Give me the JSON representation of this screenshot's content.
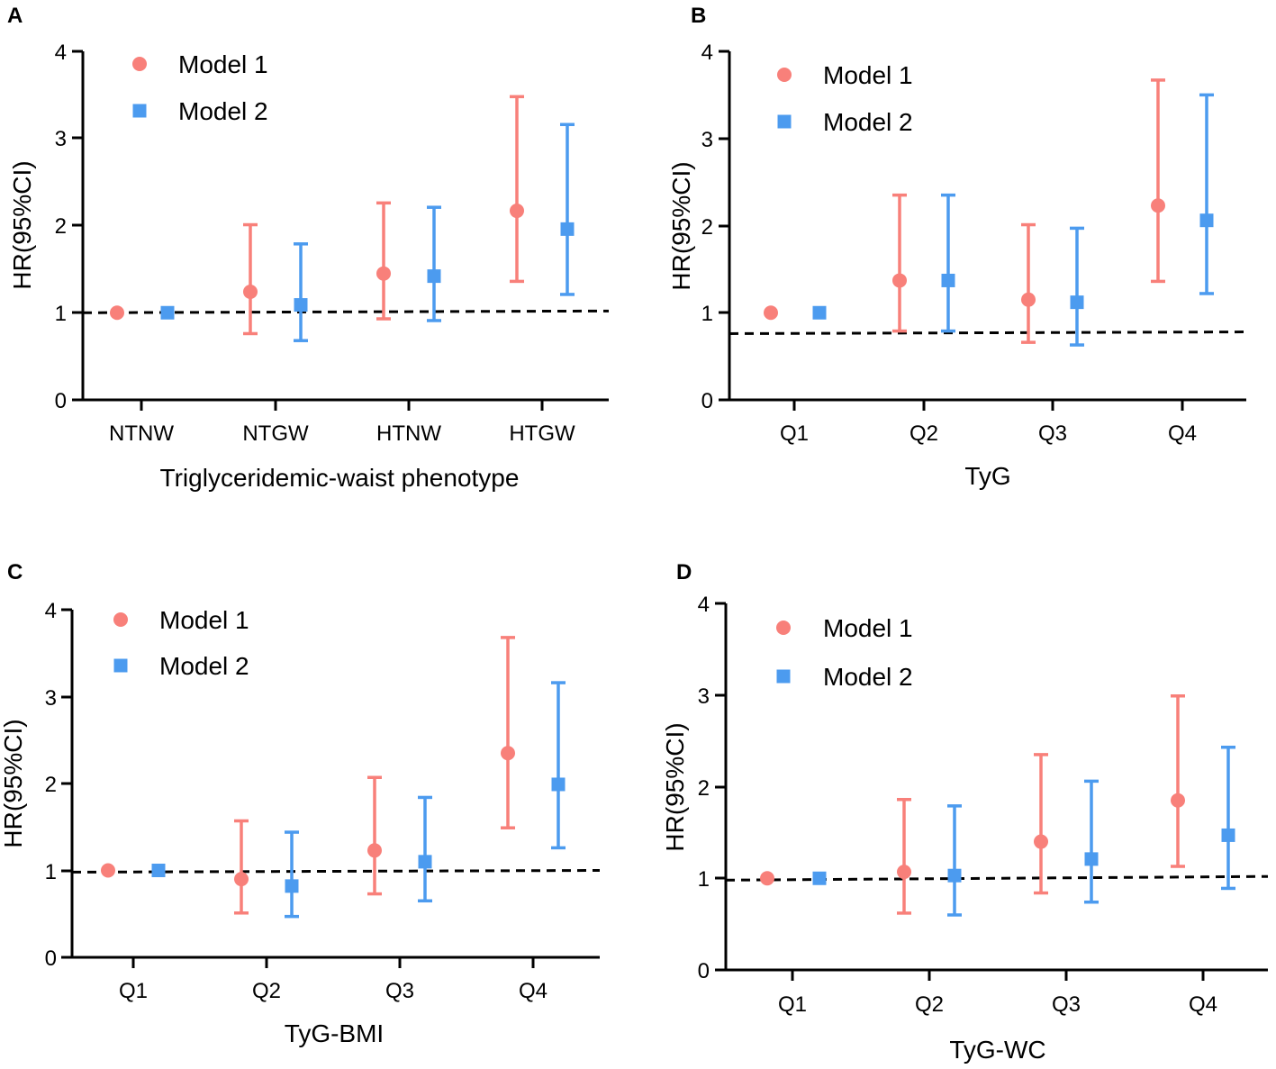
{
  "colors": {
    "model1": "#F8807A",
    "model2": "#4C9BEF",
    "axis": "#000000"
  },
  "chart_data": [
    {
      "type": "scatter",
      "panel": "A",
      "xlabel": "Triglyceridemic-waist phenotype",
      "ylabel": "HR(95%CI)",
      "ylim": [
        0,
        4
      ],
      "yticks": [
        "0",
        "1",
        "2",
        "3",
        "4"
      ],
      "categories": [
        "NTNW",
        "NTGW",
        "HTNW",
        "HTGW"
      ],
      "reference_line": [
        1.0,
        1.02
      ],
      "legend": [
        "Model 1",
        "Model 2"
      ],
      "legend_position": "top-left",
      "series": [
        {
          "name": "Model 1",
          "marker": "circle",
          "values": [
            1.0,
            1.24,
            1.45,
            2.17
          ],
          "lower": [
            null,
            0.76,
            0.93,
            1.36
          ],
          "upper": [
            null,
            2.01,
            2.26,
            3.48
          ]
        },
        {
          "name": "Model 2",
          "marker": "square",
          "values": [
            1.0,
            1.09,
            1.42,
            1.96
          ],
          "lower": [
            null,
            0.68,
            0.91,
            1.21
          ],
          "upper": [
            null,
            1.79,
            2.21,
            3.16
          ]
        }
      ]
    },
    {
      "type": "scatter",
      "panel": "B",
      "xlabel": "TyG",
      "ylabel": "HR(95%CI)",
      "ylim": [
        0,
        4
      ],
      "yticks": [
        "0",
        "1",
        "2",
        "3",
        "4"
      ],
      "categories": [
        "Q1",
        "Q2",
        "Q3",
        "Q4"
      ],
      "reference_line": [
        0.76,
        0.78
      ],
      "legend": [
        "Model 1",
        "Model 2"
      ],
      "legend_position": "top-left",
      "series": [
        {
          "name": "Model 1",
          "marker": "circle",
          "values": [
            1.0,
            1.37,
            1.15,
            2.23
          ],
          "lower": [
            null,
            0.79,
            0.66,
            1.36
          ],
          "upper": [
            null,
            2.35,
            2.01,
            3.67
          ]
        },
        {
          "name": "Model 2",
          "marker": "square",
          "values": [
            1.0,
            1.37,
            1.12,
            2.06
          ],
          "lower": [
            null,
            0.79,
            0.63,
            1.22
          ],
          "upper": [
            null,
            2.35,
            1.97,
            3.5
          ]
        }
      ]
    },
    {
      "type": "scatter",
      "panel": "C",
      "xlabel": "TyG-BMI",
      "ylabel": "HR(95%CI)",
      "ylim": [
        0,
        4
      ],
      "yticks": [
        "0",
        "1",
        "2",
        "3",
        "4"
      ],
      "categories": [
        "Q1",
        "Q2",
        "Q3",
        "Q4"
      ],
      "reference_line": [
        0.98,
        1.0
      ],
      "legend": [
        "Model 1",
        "Model 2"
      ],
      "legend_position": "top-left",
      "series": [
        {
          "name": "Model 1",
          "marker": "circle",
          "values": [
            1.0,
            0.9,
            1.23,
            2.35
          ],
          "lower": [
            null,
            0.51,
            0.73,
            1.49
          ],
          "upper": [
            null,
            1.57,
            2.07,
            3.68
          ]
        },
        {
          "name": "Model 2",
          "marker": "square",
          "values": [
            1.0,
            0.82,
            1.1,
            1.99
          ],
          "lower": [
            null,
            0.47,
            0.65,
            1.26
          ],
          "upper": [
            null,
            1.44,
            1.84,
            3.16
          ]
        }
      ]
    },
    {
      "type": "scatter",
      "panel": "D",
      "xlabel": "TyG-WC",
      "ylabel": "HR(95%CI)",
      "ylim": [
        0,
        4
      ],
      "yticks": [
        "0",
        "1",
        "2",
        "3",
        "4"
      ],
      "categories": [
        "Q1",
        "Q2",
        "Q3",
        "Q4"
      ],
      "reference_line": [
        0.98,
        1.02
      ],
      "legend": [
        "Model 1",
        "Model 2"
      ],
      "legend_position": "top-left",
      "series": [
        {
          "name": "Model 1",
          "marker": "circle",
          "values": [
            1.0,
            1.07,
            1.4,
            1.85
          ],
          "lower": [
            null,
            0.62,
            0.84,
            1.13
          ],
          "upper": [
            null,
            1.86,
            2.35,
            2.99
          ]
        },
        {
          "name": "Model 2",
          "marker": "square",
          "values": [
            1.0,
            1.03,
            1.21,
            1.47
          ],
          "lower": [
            null,
            0.6,
            0.74,
            0.89
          ],
          "upper": [
            null,
            1.79,
            2.06,
            2.43
          ]
        }
      ]
    }
  ]
}
